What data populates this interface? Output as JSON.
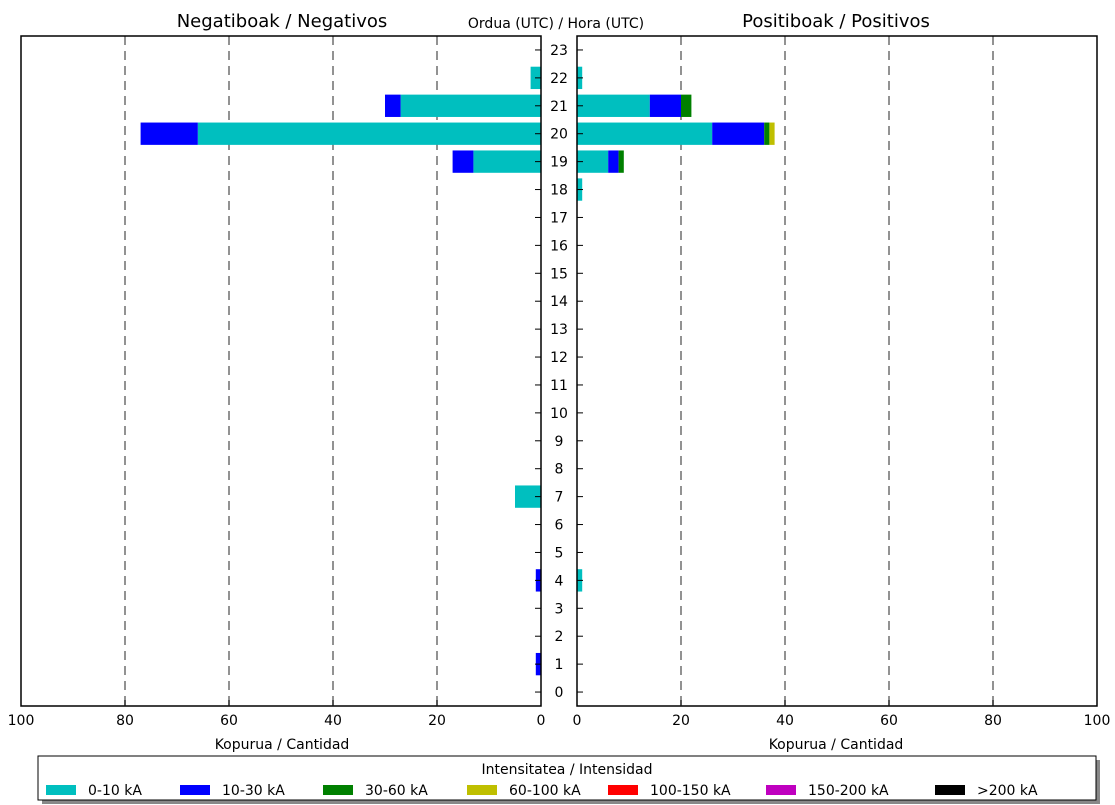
{
  "chart_data": {
    "type": "bar",
    "orientation": "horizontal",
    "center_title": "Ordua (UTC) / Hora (UTC)",
    "hours": [
      0,
      1,
      2,
      3,
      4,
      5,
      6,
      7,
      8,
      9,
      10,
      11,
      12,
      13,
      14,
      15,
      16,
      17,
      18,
      19,
      20,
      21,
      22,
      23
    ],
    "xlim": [
      0,
      100
    ],
    "x_ticks": [
      0,
      20,
      40,
      60,
      80,
      100
    ],
    "grid": "vertical-dashed",
    "legend_placement": "bottom",
    "panels": [
      {
        "key": "negative",
        "title": "Negatiboak / Negativos",
        "xlabel": "Kopurua / Cantidad",
        "direction": "left",
        "values": {
          "0-10 kA": {
            "1": 0,
            "4": 0,
            "7": 5,
            "18": 0,
            "19": 13,
            "20": 66,
            "21": 27,
            "22": 2
          },
          "10-30 kA": {
            "1": 1,
            "4": 1,
            "7": 0,
            "18": 0,
            "19": 4,
            "20": 11,
            "21": 3,
            "22": 0
          },
          "30-60 kA": {},
          "60-100 kA": {},
          "100-150 kA": {},
          "150-200 kA": {},
          ">200 kA": {}
        }
      },
      {
        "key": "positive",
        "title": "Positiboak / Positivos",
        "xlabel": "Kopurua / Cantidad",
        "direction": "right",
        "values": {
          "0-10 kA": {
            "4": 1,
            "18": 1,
            "19": 6,
            "20": 26,
            "21": 14,
            "22": 1
          },
          "10-30 kA": {
            "19": 2,
            "20": 10,
            "21": 6
          },
          "30-60 kA": {
            "19": 1,
            "20": 1,
            "21": 2
          },
          "60-100 kA": {
            "20": 1
          },
          "100-150 kA": {},
          "150-200 kA": {},
          ">200 kA": {}
        }
      }
    ],
    "legend": {
      "title": "Intensitatea / Intensidad",
      "entries": [
        {
          "label": "0-10 kA",
          "color": "#00bfbf"
        },
        {
          "label": "10-30 kA",
          "color": "#0000ff"
        },
        {
          "label": "30-60 kA",
          "color": "#008000"
        },
        {
          "label": "60-100 kA",
          "color": "#bfbf00"
        },
        {
          "label": "100-150 kA",
          "color": "#ff0000"
        },
        {
          "label": "150-200 kA",
          "color": "#bf00bf"
        },
        {
          "label": ">200 kA",
          "color": "#000000"
        }
      ]
    }
  }
}
